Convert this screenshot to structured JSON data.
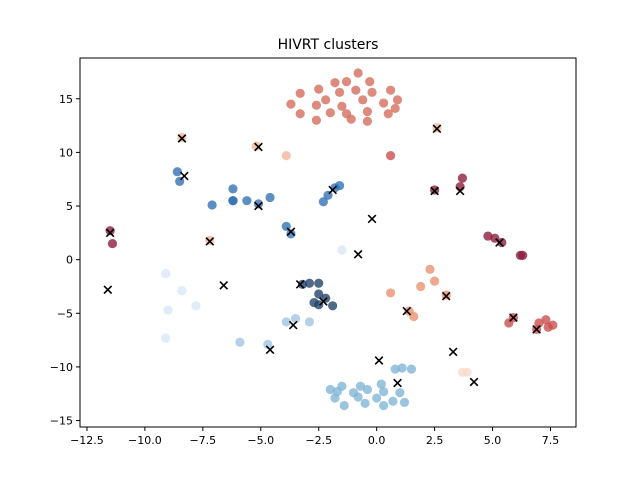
{
  "chart_data": {
    "type": "scatter",
    "title": "HIVRT clusters",
    "xlabel": "",
    "ylabel": "",
    "xlim": [
      -12.8,
      8.6
    ],
    "ylim": [
      -15.6,
      18.8
    ],
    "xticks": [
      -12.5,
      -10.0,
      -7.5,
      -5.0,
      -2.5,
      0.0,
      2.5,
      5.0,
      7.5
    ],
    "xtick_labels": [
      "−12.5",
      "−10.0",
      "−7.5",
      "−5.0",
      "−2.5",
      "0.0",
      "2.5",
      "5.0",
      "7.5"
    ],
    "yticks": [
      -15,
      -10,
      -5,
      0,
      5,
      10,
      15
    ],
    "ytick_labels": [
      "−15",
      "−10",
      "−5",
      "0",
      "5",
      "10",
      "15"
    ],
    "grid": false,
    "point_series": [
      {
        "color": "#d46a5a",
        "points": [
          [
            -0.8,
            17.4
          ],
          [
            -1.8,
            16.5
          ],
          [
            -1.3,
            16.6
          ],
          [
            -0.3,
            16.6
          ],
          [
            -3.3,
            15.5
          ],
          [
            -2.5,
            15.9
          ],
          [
            -1.6,
            15.6
          ],
          [
            -0.9,
            15.8
          ],
          [
            -0.2,
            15.6
          ],
          [
            0.6,
            15.8
          ],
          [
            -3.7,
            14.5
          ],
          [
            -2.2,
            14.9
          ],
          [
            -1.5,
            14.3
          ],
          [
            -0.6,
            14.9
          ],
          [
            0.3,
            14.6
          ],
          [
            0.9,
            14.9
          ],
          [
            -3.3,
            13.6
          ],
          [
            -2.6,
            14.4
          ],
          [
            -2.0,
            13.7
          ],
          [
            -1.3,
            13.6
          ],
          [
            -0.4,
            13.8
          ],
          [
            0.5,
            13.6
          ],
          [
            0.8,
            14.1
          ],
          [
            -2.6,
            13.0
          ],
          [
            -1.1,
            13.1
          ],
          [
            -0.4,
            12.9
          ]
        ]
      },
      {
        "color": "#7fb3d5",
        "points": [
          [
            -1.5,
            -11.8
          ],
          [
            -0.7,
            -11.8
          ],
          [
            0.2,
            -11.6
          ],
          [
            -1.7,
            -12.3
          ],
          [
            -1.0,
            -12.4
          ],
          [
            -0.4,
            -12.1
          ],
          [
            0.3,
            -12.3
          ],
          [
            1.0,
            -12.4
          ],
          [
            -1.8,
            -12.9
          ],
          [
            -0.8,
            -12.8
          ],
          [
            0.0,
            -12.9
          ],
          [
            0.7,
            -13.2
          ],
          [
            -1.4,
            -13.6
          ],
          [
            -0.5,
            -13.4
          ],
          [
            0.3,
            -13.6
          ],
          [
            1.2,
            -13.3
          ],
          [
            -2.0,
            -12.1
          ],
          [
            0.8,
            -10.2
          ],
          [
            1.1,
            -10.1
          ],
          [
            1.5,
            -10.2
          ]
        ]
      },
      {
        "color": "#2f6fb3",
        "points": [
          [
            -8.6,
            8.2
          ],
          [
            -8.5,
            7.3
          ],
          [
            -7.1,
            5.1
          ],
          [
            -6.2,
            6.6
          ],
          [
            -5.6,
            5.5
          ],
          [
            -6.2,
            5.5
          ],
          [
            -5.1,
            5.2
          ],
          [
            -4.6,
            5.8
          ],
          [
            -3.9,
            3.1
          ],
          [
            -3.7,
            2.4
          ],
          [
            -2.3,
            5.4
          ],
          [
            -2.1,
            6.0
          ],
          [
            -1.8,
            6.7
          ],
          [
            -1.6,
            6.9
          ],
          [
            -6.2,
            5.5
          ]
        ]
      },
      {
        "color": "#1f3f68",
        "points": [
          [
            -3.2,
            -2.3
          ],
          [
            -2.9,
            -2.2
          ],
          [
            -2.5,
            -2.2
          ],
          [
            -2.5,
            -3.2
          ],
          [
            -2.5,
            -4.2
          ],
          [
            -2.2,
            -3.6
          ],
          [
            -1.9,
            -4.3
          ],
          [
            -2.7,
            -4.0
          ]
        ]
      },
      {
        "color": "#d7e7f5",
        "points": [
          [
            -9.1,
            -1.3
          ],
          [
            -9.0,
            -4.7
          ],
          [
            -8.4,
            -2.9
          ],
          [
            -7.8,
            -4.3
          ],
          [
            -9.1,
            -7.3
          ],
          [
            -1.5,
            0.9
          ]
        ]
      },
      {
        "color": "#9fc4e0",
        "points": [
          [
            -5.9,
            -7.7
          ],
          [
            -4.7,
            -7.9
          ],
          [
            -3.9,
            -5.8
          ],
          [
            -3.5,
            -5.5
          ],
          [
            -2.9,
            -5.8
          ]
        ]
      },
      {
        "color": "#8b1a3a",
        "points": [
          [
            -11.5,
            2.7
          ],
          [
            -11.4,
            1.5
          ],
          [
            3.7,
            7.6
          ],
          [
            2.5,
            6.5
          ],
          [
            3.6,
            6.8
          ],
          [
            4.8,
            2.2
          ],
          [
            5.1,
            2.0
          ],
          [
            5.4,
            1.6
          ],
          [
            6.2,
            0.4
          ],
          [
            6.3,
            0.4
          ]
        ]
      },
      {
        "color": "#c94a4a",
        "points": [
          [
            5.7,
            -5.9
          ],
          [
            5.9,
            -5.4
          ],
          [
            6.9,
            -6.5
          ],
          [
            7.0,
            -5.9
          ],
          [
            7.3,
            -5.6
          ],
          [
            7.4,
            -6.3
          ],
          [
            7.6,
            -6.1
          ],
          [
            0.6,
            9.7
          ]
        ]
      },
      {
        "color": "#e8906e",
        "points": [
          [
            2.3,
            -0.9
          ],
          [
            2.5,
            -2.0
          ],
          [
            1.9,
            -2.5
          ],
          [
            3.0,
            -3.3
          ],
          [
            1.6,
            -5.3
          ],
          [
            1.4,
            -4.8
          ],
          [
            0.6,
            -3.1
          ]
        ]
      },
      {
        "color": "#f2b39b",
        "points": [
          [
            -8.4,
            11.4
          ],
          [
            -7.2,
            1.8
          ],
          [
            -5.2,
            10.6
          ],
          [
            -3.9,
            9.7
          ],
          [
            2.6,
            12.3
          ]
        ]
      },
      {
        "color": "#f7d9c9",
        "points": [
          [
            3.7,
            -10.5
          ],
          [
            3.9,
            -10.5
          ]
        ]
      }
    ],
    "centroids": [
      [
        -8.4,
        11.3
      ],
      [
        -5.1,
        10.5
      ],
      [
        2.6,
        12.2
      ],
      [
        -8.3,
        7.8
      ],
      [
        -1.9,
        6.5
      ],
      [
        -5.1,
        5.0
      ],
      [
        2.5,
        6.4
      ],
      [
        3.6,
        6.4
      ],
      [
        -0.2,
        3.8
      ],
      [
        -11.5,
        2.5
      ],
      [
        -7.2,
        1.7
      ],
      [
        -3.7,
        2.6
      ],
      [
        5.3,
        1.6
      ],
      [
        -0.8,
        0.5
      ],
      [
        -11.6,
        -2.8
      ],
      [
        -6.6,
        -2.4
      ],
      [
        -3.3,
        -2.3
      ],
      [
        -2.3,
        -3.9
      ],
      [
        3.0,
        -3.4
      ],
      [
        1.3,
        -4.8
      ],
      [
        5.9,
        -5.4
      ],
      [
        6.9,
        -6.5
      ],
      [
        -3.6,
        -6.1
      ],
      [
        -4.6,
        -8.4
      ],
      [
        0.1,
        -9.4
      ],
      [
        3.3,
        -8.6
      ],
      [
        0.9,
        -11.5
      ],
      [
        4.2,
        -11.4
      ]
    ],
    "centroid_color": "#000000"
  }
}
